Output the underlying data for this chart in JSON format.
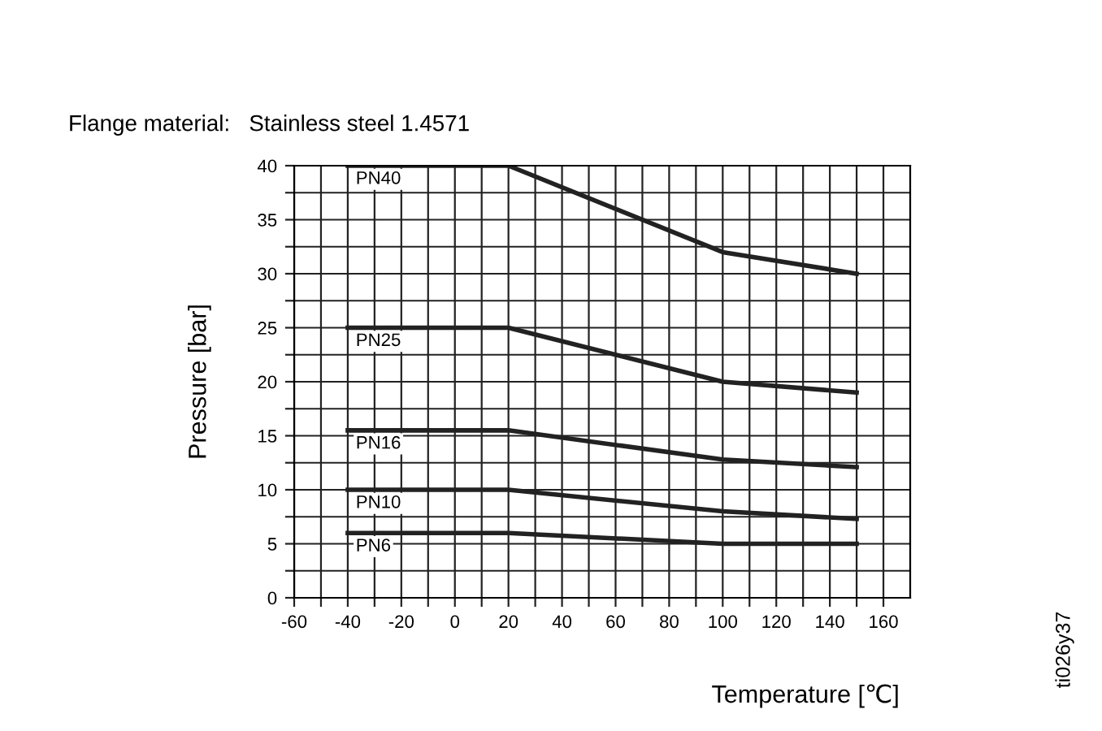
{
  "chart_data": {
    "type": "line",
    "title": "Flange material:   Stainless steel 1.4571",
    "xlabel": "Temperature [℃]",
    "ylabel": "Pressure [bar]",
    "annotations": [
      "ti026y37"
    ],
    "xlim": [
      -60,
      170
    ],
    "ylim": [
      0,
      40
    ],
    "xticks": [
      -60,
      {
        "value": -50,
        "label": null
      },
      -40,
      {
        "value": -30,
        "label": null
      },
      -20,
      {
        "value": -10,
        "label": null
      },
      0,
      {
        "value": 10,
        "label": null
      },
      20,
      {
        "value": 30,
        "label": null
      },
      40,
      {
        "value": 50,
        "label": null
      },
      60,
      {
        "value": 70,
        "label": null
      },
      80,
      {
        "value": 90,
        "label": null
      },
      100,
      {
        "value": 110,
        "label": null
      },
      120,
      {
        "value": 130,
        "label": null
      },
      140,
      {
        "value": 150,
        "label": null
      },
      160
    ],
    "yticks": [
      0,
      {
        "value": 2.5,
        "label": null
      },
      5,
      {
        "value": 7.5,
        "label": null
      },
      10,
      {
        "value": 12.5,
        "label": null
      },
      15,
      {
        "value": 17.5,
        "label": null
      },
      20,
      {
        "value": 22.5,
        "label": null
      },
      25,
      {
        "value": 27.5,
        "label": null
      },
      30,
      {
        "value": 32.5,
        "label": null
      },
      35,
      {
        "value": 37.5,
        "label": null
      },
      40
    ],
    "grid": true,
    "line_style": "solid",
    "x": [
      -40,
      20,
      100,
      150
    ],
    "series": [
      {
        "name": "PN40",
        "color": "#222222",
        "values": [
          40,
          40,
          32,
          30
        ]
      },
      {
        "name": "PN25",
        "color": "#222222",
        "values": [
          25,
          25,
          20,
          19
        ]
      },
      {
        "name": "PN16",
        "color": "#222222",
        "values": [
          15.5,
          15.5,
          12.8,
          12.1
        ]
      },
      {
        "name": "PN10",
        "color": "#222222",
        "values": [
          10,
          10,
          8,
          7.3
        ]
      },
      {
        "name": "PN6",
        "color": "#222222",
        "values": [
          6,
          6,
          5,
          5
        ]
      }
    ]
  }
}
